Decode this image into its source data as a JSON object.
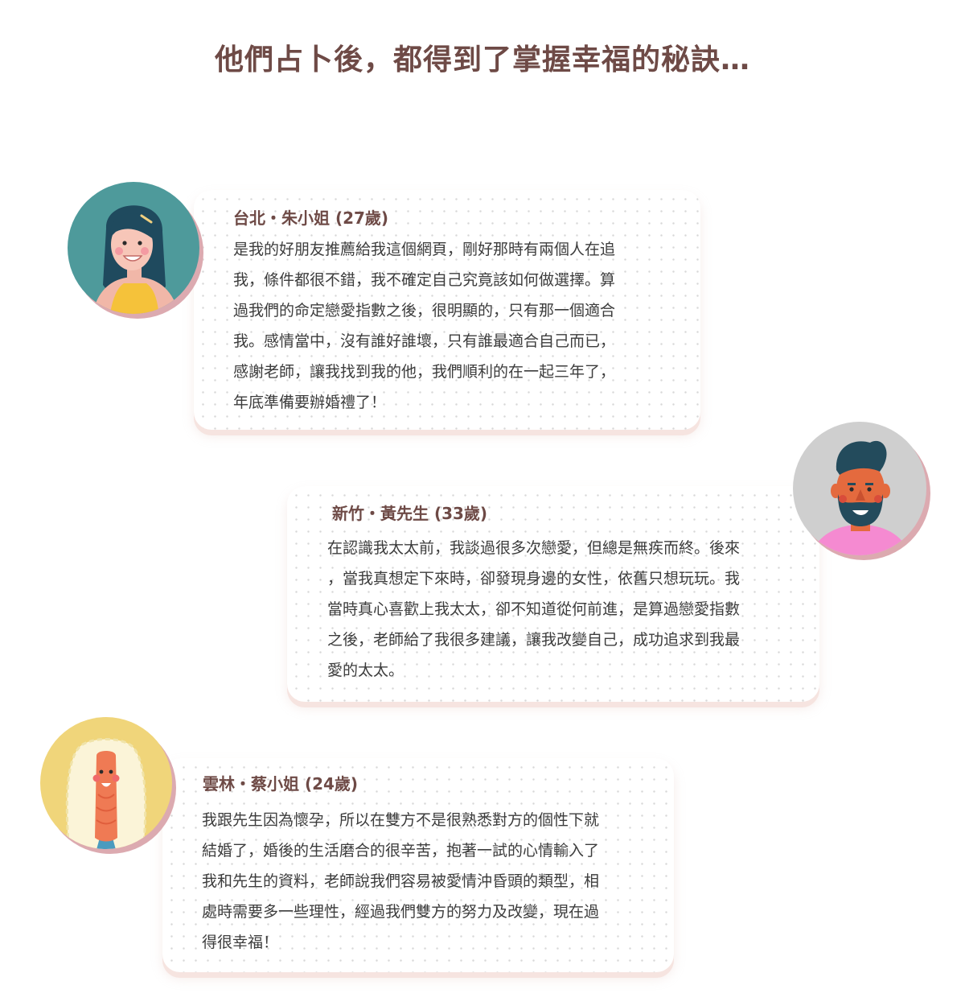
{
  "page": {
    "title": "他們占卜後，都得到了掌握幸福的秘訣…"
  },
  "colors": {
    "title": "#6e4a46",
    "card_shadow": "#f6e4e0",
    "avatar_shadow": "#dcaab0"
  },
  "testimonials": [
    {
      "name": "台北・朱小姐 (27歲)",
      "avatar_icon": "woman-dark-hair-avatar-icon",
      "lines": [
        "是我的好朋友推薦給我這個網頁，剛好那時有兩個人在追",
        "我，條件都很不錯，我不確定自己究竟該如何做選擇。算",
        "過我們的命定戀愛指數之後，很明顯的，只有那一個適合",
        "我。感情當中，沒有誰好誰壞，只有誰最適合自己而已，",
        "感謝老師，讓我找到我的他，我們順利的在一起三年了，",
        "年底準備要辦婚禮了！"
      ]
    },
    {
      "name": "新竹・黃先生 (33歲)",
      "avatar_icon": "bearded-man-avatar-icon",
      "lines": [
        "在認識我太太前，我談過很多次戀愛，但總是無疾而終。後來",
        "，當我真想定下來時，卻發現身邊的女性，依舊只想玩玩。我",
        "當時真心喜歡上我太太，卻不知道從何前進，是算過戀愛指數",
        "之後，老師給了我很多建議，讓我改變自己，成功追求到我最",
        "愛的太太。"
      ]
    },
    {
      "name": "雲林・蔡小姐 (24歲)",
      "avatar_icon": "curly-hair-woman-avatar-icon",
      "lines": [
        "我跟先生因為懷孕，所以在雙方不是很熟悉對方的個性下就",
        "結婚了，婚後的生活磨合的很辛苦，抱著一試的心情輸入了",
        "我和先生的資料，老師說我們容易被愛情沖昏頭的類型，相",
        "處時需要多一些理性，經過我們雙方的努力及改變，現在過",
        "得很幸福！"
      ]
    }
  ]
}
